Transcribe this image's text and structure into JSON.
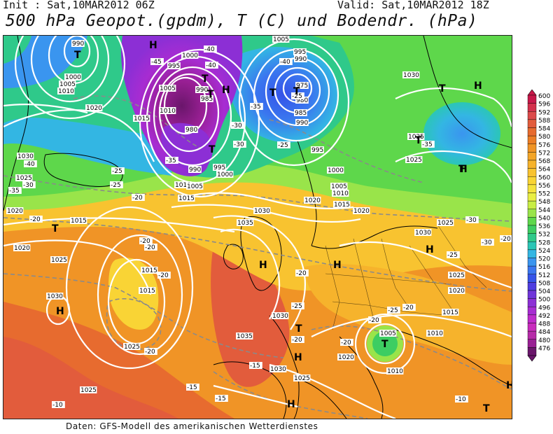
{
  "header": {
    "init": "Init : Sat,10MAR2012 06Z",
    "valid": "Valid: Sat,10MAR2012 18Z",
    "title": "500 hPa Geopot.(gpdm), T (C) und Bodendr. (hPa)"
  },
  "footer": {
    "text": "Daten: GFS-Modell des amerikanischen Wetterdienstes"
  },
  "legend": {
    "levels": [
      "600",
      "596",
      "592",
      "588",
      "584",
      "580",
      "576",
      "572",
      "568",
      "564",
      "560",
      "556",
      "552",
      "548",
      "544",
      "540",
      "536",
      "532",
      "528",
      "524",
      "520",
      "516",
      "512",
      "508",
      "504",
      "500",
      "496",
      "492",
      "488",
      "484",
      "480",
      "476"
    ],
    "colors": [
      "#c8184a",
      "#d3304c",
      "#dc4a4a",
      "#e25c3c",
      "#e76b2f",
      "#ec7e26",
      "#f09426",
      "#f3a528",
      "#f6b32c",
      "#f8c330",
      "#f9d435",
      "#f5e23d",
      "#e9ee44",
      "#c8ee45",
      "#99e44a",
      "#5ed74b",
      "#3dcd62",
      "#2fc98a",
      "#2bc6b6",
      "#33b6e3",
      "#3a95ef",
      "#3a76ef",
      "#3553e8",
      "#4e3de0",
      "#6f35d9",
      "#8c2fd5",
      "#a72cd2",
      "#be2bcb",
      "#c82cbd",
      "#b62ba8",
      "#981f93",
      "#6a166b"
    ]
  },
  "map": {
    "pressure_labels": [
      {
        "v": "990"
      },
      {
        "v": "1000"
      },
      {
        "v": "1005"
      },
      {
        "v": "1010"
      },
      {
        "v": "1020"
      },
      {
        "v": "1015"
      },
      {
        "v": "1030"
      },
      {
        "v": "1025"
      },
      {
        "v": "1020"
      },
      {
        "v": "1015"
      },
      {
        "v": "1020"
      },
      {
        "v": "1025"
      },
      {
        "v": "1015"
      },
      {
        "v": "1015"
      },
      {
        "v": "1030"
      },
      {
        "v": "1025"
      },
      {
        "v": "1025"
      },
      {
        "v": "1000"
      },
      {
        "v": "995"
      },
      {
        "v": "990"
      },
      {
        "v": "985"
      },
      {
        "v": "980"
      },
      {
        "v": "1005"
      },
      {
        "v": "1010"
      },
      {
        "v": "1010"
      },
      {
        "v": "1005"
      },
      {
        "v": "1015"
      },
      {
        "v": "990"
      },
      {
        "v": "995"
      },
      {
        "v": "1000"
      },
      {
        "v": "975"
      },
      {
        "v": "1005"
      },
      {
        "v": "995"
      },
      {
        "v": "990"
      },
      {
        "v": "980"
      },
      {
        "v": "985"
      },
      {
        "v": "990"
      },
      {
        "v": "995"
      },
      {
        "v": "1000"
      },
      {
        "v": "1005"
      },
      {
        "v": "1010"
      },
      {
        "v": "1015"
      },
      {
        "v": "1020"
      },
      {
        "v": "1030"
      },
      {
        "v": "1025"
      },
      {
        "v": "1035"
      },
      {
        "v": "1030"
      },
      {
        "v": "1035"
      },
      {
        "v": "1030"
      },
      {
        "v": "1030"
      },
      {
        "v": "1025"
      },
      {
        "v": "1020"
      },
      {
        "v": "1015"
      },
      {
        "v": "1005"
      },
      {
        "v": "1010"
      },
      {
        "v": "1010"
      },
      {
        "v": "1020"
      },
      {
        "v": "1025"
      },
      {
        "v": "1030"
      },
      {
        "v": "1025"
      },
      {
        "v": "1020"
      },
      {
        "v": "1025"
      }
    ],
    "temp_labels": [
      "-40",
      "-45",
      "-35",
      "-30",
      "-20",
      "-25",
      "-30",
      "-35",
      "-40",
      "-25",
      "-30",
      "-35",
      "-40",
      "-40",
      "-25",
      "-20",
      "-20",
      "-15",
      "-10",
      "-15",
      "-20",
      "-20",
      "-25",
      "-20",
      "-20",
      "-15",
      "-35",
      "-30",
      "-25",
      "-20",
      "-20",
      "-20",
      "-10",
      "-25",
      "-45",
      "-30",
      "-25",
      "-20",
      "-20"
    ],
    "centers": [
      {
        "type": "T"
      },
      {
        "type": "H"
      },
      {
        "type": "T"
      },
      {
        "type": "T"
      },
      {
        "type": "H"
      },
      {
        "type": "T"
      },
      {
        "type": "T"
      },
      {
        "type": "H"
      },
      {
        "type": "T"
      },
      {
        "type": "T"
      },
      {
        "type": "H"
      },
      {
        "type": "T"
      },
      {
        "type": "H"
      },
      {
        "type": "H"
      },
      {
        "type": "T"
      },
      {
        "type": "H"
      },
      {
        "type": "H"
      },
      {
        "type": "T"
      },
      {
        "type": "H"
      },
      {
        "type": "T"
      },
      {
        "type": "H"
      },
      {
        "type": "T"
      },
      {
        "type": "T"
      },
      {
        "type": "H"
      }
    ]
  }
}
